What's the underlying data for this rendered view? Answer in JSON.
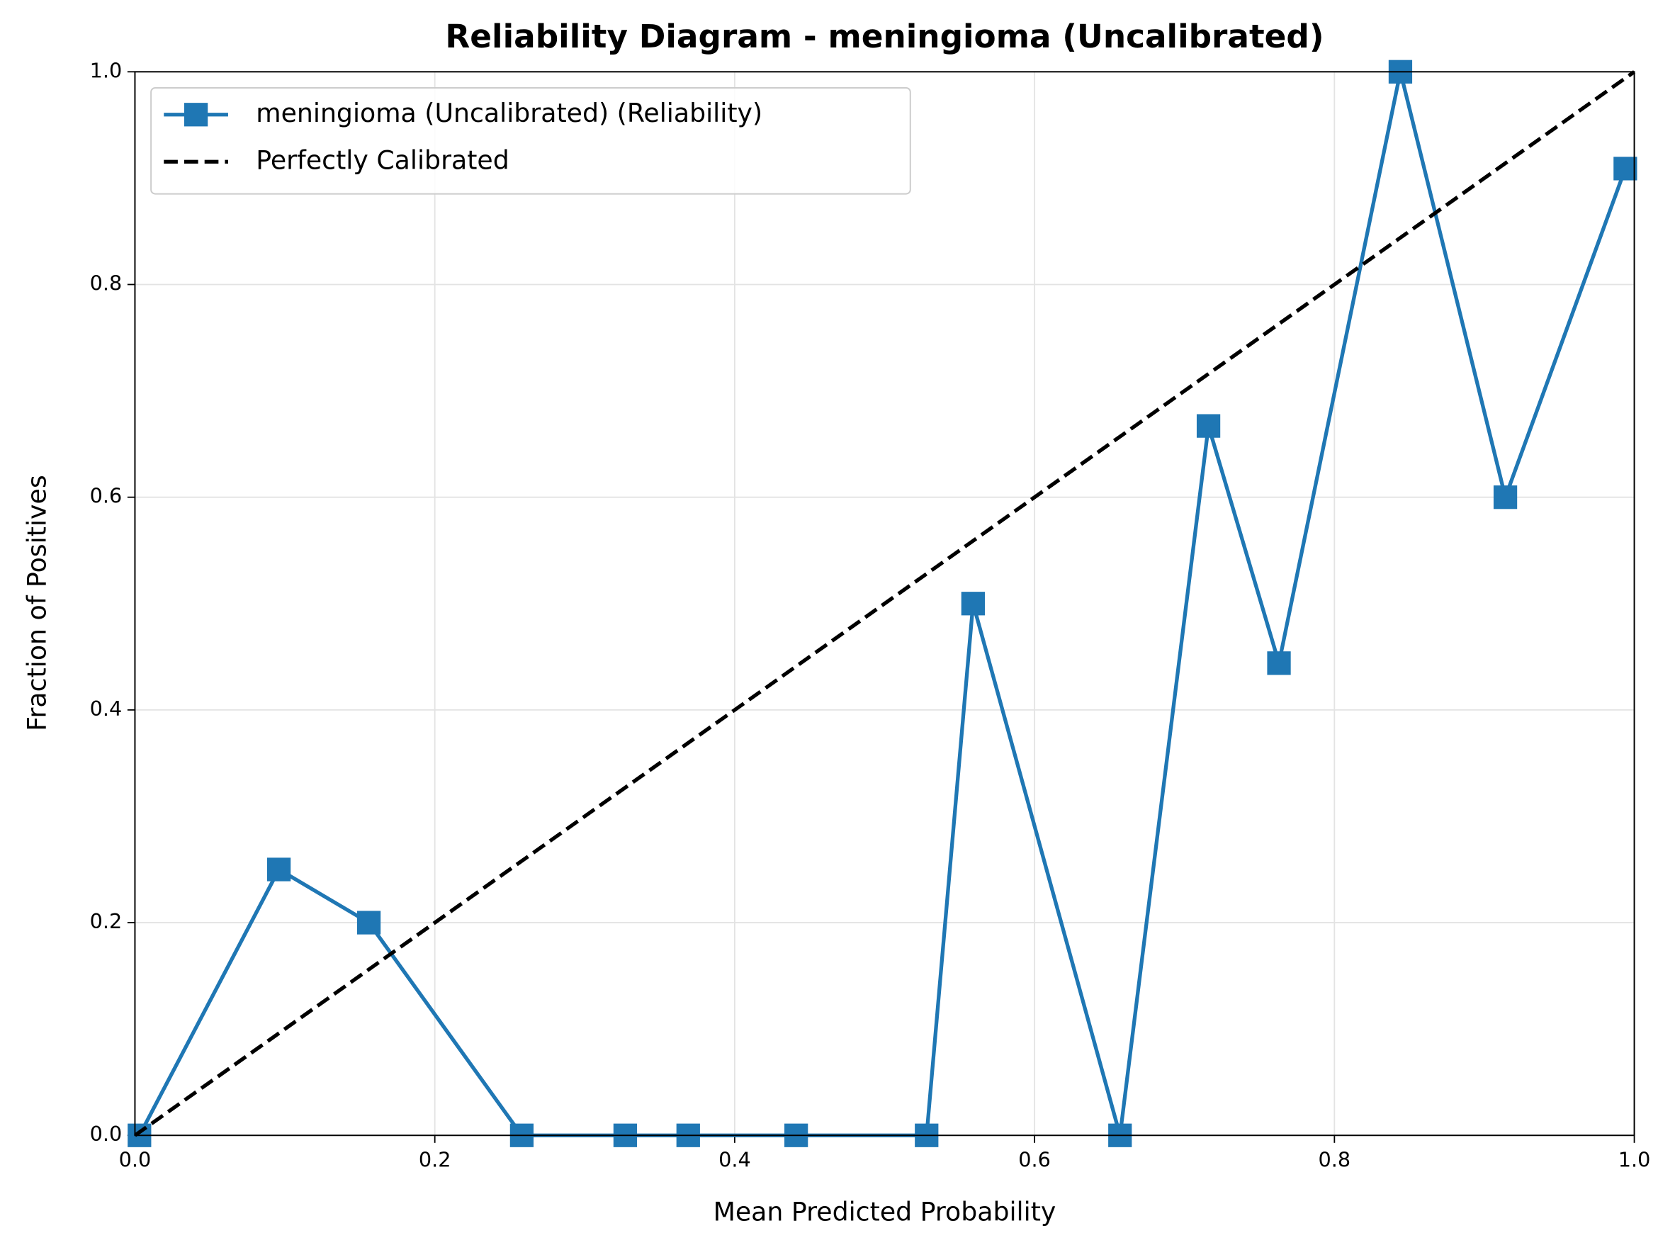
{
  "chart_data": {
    "type": "line",
    "title": "Reliability Diagram - meningioma (Uncalibrated)",
    "xlabel": "Mean Predicted Probability",
    "ylabel": "Fraction of Positives",
    "xlim": [
      0,
      1
    ],
    "ylim": [
      0,
      1
    ],
    "xticks": [
      {
        "value": 0,
        "label": "0.0"
      },
      0.2,
      0.4,
      0.6,
      0.8,
      {
        "value": 1,
        "label": "1.0"
      }
    ],
    "yticks": [
      {
        "value": 0,
        "label": "0.0"
      },
      0.2,
      0.4,
      0.6,
      0.8,
      {
        "value": 1,
        "label": "1.0"
      }
    ],
    "grid": true,
    "legend": "upper left",
    "series": [
      {
        "name": "meningioma (Uncalibrated) (Reliability)",
        "color": "#1f77b4",
        "marker": "square",
        "linestyle": "solid",
        "x": [
          0.003,
          0.096,
          0.156,
          0.258,
          0.327,
          0.369,
          0.441,
          0.528,
          0.559,
          0.657,
          0.716,
          0.763,
          0.844,
          0.914,
          0.994
        ],
        "values": [
          0,
          0.25,
          0.2,
          0,
          0,
          0,
          0,
          0,
          0.5,
          0,
          0.667,
          0.444,
          1.0,
          0.6,
          0.909
        ]
      },
      {
        "name": "Perfectly Calibrated",
        "color": "#000000",
        "marker": "none",
        "linestyle": "dashed",
        "x": [
          0,
          1
        ],
        "values": [
          0,
          1
        ]
      }
    ]
  }
}
